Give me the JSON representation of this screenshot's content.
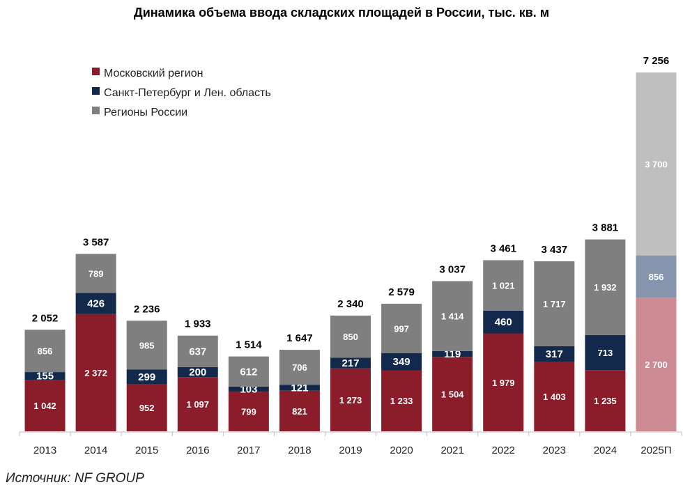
{
  "chart_data": {
    "type": "stacked-bar",
    "title": "Динамика объема ввода складских площадей в России, тыс. кв. м",
    "categories": [
      "2013",
      "2014",
      "2015",
      "2016",
      "2017",
      "2018",
      "2019",
      "2020",
      "2021",
      "2022",
      "2023",
      "2024",
      "2025П"
    ],
    "series": [
      {
        "name": "Московский регион",
        "color": "#8b1c2a",
        "forecast_color": "#cc8b92",
        "values": [
          1042,
          2372,
          952,
          1097,
          799,
          821,
          1273,
          1233,
          1504,
          1979,
          1403,
          1235,
          2700
        ],
        "labels": [
          "1 042",
          "2 372",
          "952",
          "1 097",
          "799",
          "821",
          "1 273",
          "1 233",
          "1 504",
          "1 979",
          "1 403",
          "1 235",
          "2 700"
        ]
      },
      {
        "name": "Санкт-Петербург и Лен. область",
        "color": "#13294b",
        "forecast_color": "#8794ad",
        "values": [
          155,
          426,
          299,
          200,
          103,
          121,
          217,
          349,
          119,
          460,
          317,
          713,
          856
        ],
        "labels": [
          "155",
          "426",
          "299",
          "200",
          "103",
          "121",
          "217",
          "349",
          "119",
          "460",
          "317",
          "713",
          "856"
        ]
      },
      {
        "name": "Регионы России",
        "color": "#7f7f7f",
        "forecast_color": "#bfbfbf",
        "values": [
          856,
          789,
          985,
          637,
          612,
          706,
          850,
          997,
          1414,
          1021,
          1717,
          1932,
          3700
        ],
        "labels": [
          "856",
          "789",
          "985",
          "637",
          "612",
          "706",
          "850",
          "997",
          "1 414",
          "1 021",
          "1 717",
          "1 932",
          "3 700"
        ]
      }
    ],
    "totals": [
      2052,
      3587,
      2236,
      1933,
      1514,
      1647,
      2340,
      2579,
      3037,
      3461,
      3437,
      3881,
      7256
    ],
    "total_labels": [
      "2 052",
      "3 587",
      "2 236",
      "1 933",
      "1 514",
      "1 647",
      "2 340",
      "2 579",
      "3 037",
      "3 461",
      "3 437",
      "3 881",
      "7 256"
    ],
    "forecast_index": 12,
    "ylim": [
      0,
      7256
    ],
    "legend_position": "top-left",
    "xlabel": "",
    "ylabel": ""
  },
  "source": "Источник: NF GROUP"
}
